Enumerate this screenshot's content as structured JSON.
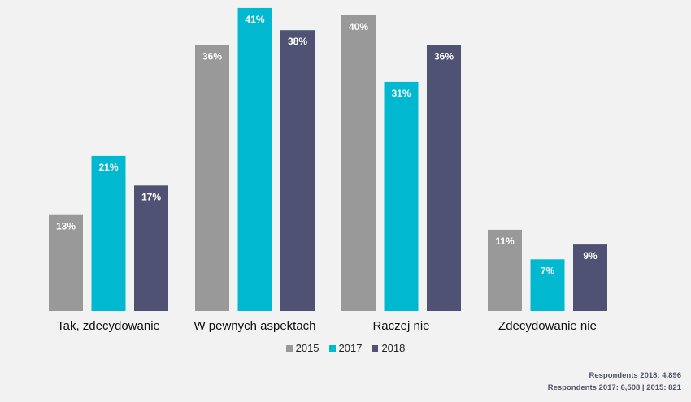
{
  "chart_data": {
    "type": "bar",
    "title": "",
    "xlabel": "",
    "ylabel": "",
    "ylim": [
      0,
      42
    ],
    "grid": false,
    "legend_position": "bottom-center",
    "categories": [
      "Tak, zdecydowanie",
      "W pewnych aspektach",
      "Raczej nie",
      "Zdecydowanie nie"
    ],
    "series": [
      {
        "name": "2015",
        "color": "#999999",
        "values": [
          13,
          36,
          40,
          11
        ],
        "labels": [
          "13%",
          "36%",
          "40%",
          "11%"
        ]
      },
      {
        "name": "2017",
        "color": "#00b9d1",
        "values": [
          21,
          41,
          31,
          7
        ],
        "labels": [
          "21%",
          "41%",
          "31%",
          "7%"
        ]
      },
      {
        "name": "2018",
        "color": "#4f5272",
        "values": [
          17,
          38,
          36,
          9
        ],
        "labels": [
          "17%",
          "38%",
          "36%",
          "9%"
        ]
      }
    ]
  },
  "legend": [
    "2015",
    "2017",
    "2018"
  ],
  "footnotes": {
    "line1": "Respondents 2018: 4,896",
    "line2": "Respondents 2017: 6,508 | 2015: 821"
  }
}
